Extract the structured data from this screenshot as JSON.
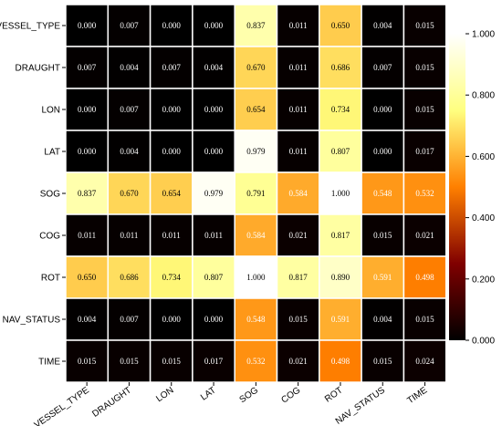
{
  "chart_data": {
    "type": "heatmap",
    "title": "",
    "xlabel": "",
    "ylabel": "",
    "row_labels": [
      "VESSEL_TYPE",
      "DRAUGHT",
      "LON",
      "LAT",
      "SOG",
      "COG",
      "ROT",
      "NAV_STATUS",
      "TIME"
    ],
    "col_labels": [
      "VESSEL_TYPE",
      "DRAUGHT",
      "LON",
      "LAT",
      "SOG",
      "COG",
      "ROT",
      "NAV_STATUS",
      "TIME"
    ],
    "values": [
      [
        0.0,
        0.007,
        0.0,
        0.0,
        0.837,
        0.011,
        0.65,
        0.004,
        0.015
      ],
      [
        0.007,
        0.004,
        0.007,
        0.004,
        0.67,
        0.011,
        0.686,
        0.007,
        0.015
      ],
      [
        0.0,
        0.007,
        0.0,
        0.0,
        0.654,
        0.011,
        0.734,
        0.0,
        0.015
      ],
      [
        0.0,
        0.004,
        0.0,
        0.0,
        0.979,
        0.011,
        0.807,
        0.0,
        0.017
      ],
      [
        0.837,
        0.67,
        0.654,
        0.979,
        0.791,
        0.584,
        1.0,
        0.548,
        0.532
      ],
      [
        0.011,
        0.011,
        0.011,
        0.011,
        0.584,
        0.021,
        0.817,
        0.015,
        0.021
      ],
      [
        0.65,
        0.686,
        0.734,
        0.807,
        1.0,
        0.817,
        0.89,
        0.591,
        0.498
      ],
      [
        0.004,
        0.007,
        0.0,
        0.0,
        0.548,
        0.015,
        0.591,
        0.004,
        0.015
      ],
      [
        0.015,
        0.015,
        0.015,
        0.017,
        0.532,
        0.021,
        0.498,
        0.015,
        0.024
      ]
    ],
    "cell_labels": [
      [
        "0.000",
        "0.007",
        "0.000",
        "0.000",
        "0.837",
        "0.011",
        "0.650",
        "0.004",
        "0.015"
      ],
      [
        "0.007",
        "0.004",
        "0.007",
        "0.004",
        "0.670",
        "0.011",
        "0.686",
        "0.007",
        "0.015"
      ],
      [
        "0.000",
        "0.007",
        "0.000",
        "0.000",
        "0.654",
        "0.011",
        "0.734",
        "0.000",
        "0.015"
      ],
      [
        "0.000",
        "0.004",
        "0.000",
        "0.000",
        "0.979",
        "0.011",
        "0.807",
        "0.000",
        "0.017"
      ],
      [
        "0.837",
        "0.670",
        "0.654",
        "0.979",
        "0.791",
        "0.584",
        "1.000",
        "0.548",
        "0.532"
      ],
      [
        "0.011",
        "0.011",
        "0.011",
        "0.011",
        "0.584",
        "0.021",
        "0.817",
        "0.015",
        "0.021"
      ],
      [
        "0.650",
        "0.686",
        "0.734",
        "0.807",
        "1.000",
        "0.817",
        "0.890",
        "0.591",
        "0.498"
      ],
      [
        "0.004",
        "0.007",
        "0.000",
        "0.000",
        "0.548",
        "0.015",
        "0.591",
        "0.004",
        "0.015"
      ],
      [
        "0.015",
        "0.015",
        "0.015",
        "0.017",
        "0.532",
        "0.021",
        "0.498",
        "0.015",
        "0.024"
      ]
    ],
    "colormap": "afmhot",
    "vmin": 0.0,
    "vmax": 1.0,
    "colorbar": {
      "position": "right",
      "ticks": [
        0.0,
        0.2,
        0.4,
        0.6,
        0.8,
        1.0
      ],
      "tick_labels": [
        "0.000",
        "0.200",
        "0.400",
        "0.600",
        "0.800",
        "1.000"
      ]
    },
    "grid": true,
    "cell_border_color": "#ffffff"
  }
}
